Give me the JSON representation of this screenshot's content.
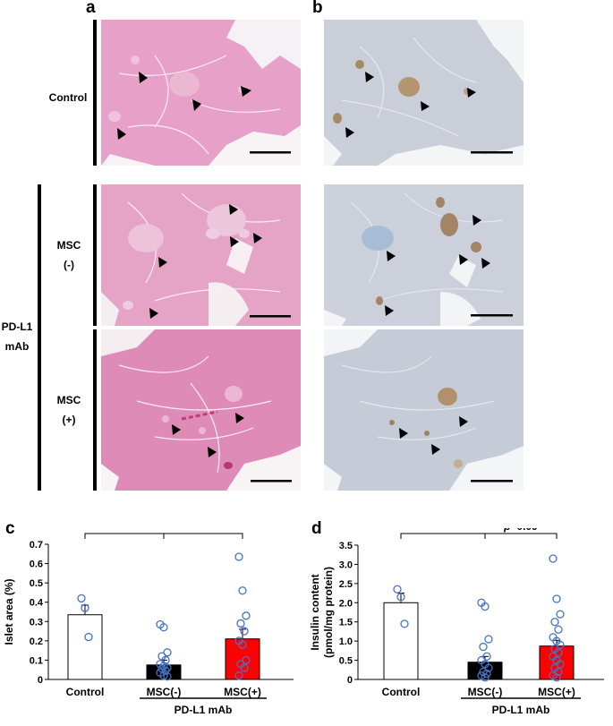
{
  "panels": {
    "a": "a",
    "b": "b",
    "c": "c",
    "d": "d"
  },
  "row_labels": {
    "control": "Control",
    "msc_neg_line1": "MSC",
    "msc_neg_line2": "(-)",
    "msc_pos_line1": "MSC",
    "msc_pos_line2": "(+)",
    "pdl1_line1": "PD-L1",
    "pdl1_line2": "mAb"
  },
  "colors": {
    "he_stain": "#e7a0c7",
    "ihc_stain": "#c9ced8",
    "control_bar": "#ffffff",
    "msc_neg_bar": "#000000",
    "msc_pos_bar": "#ff0000",
    "points": "#4472c4"
  },
  "chart_data": [
    {
      "type": "bar",
      "panel": "c",
      "ylabel": "Islet area (%)",
      "categories": [
        "Control",
        "MSC(-)",
        "MSC(+)"
      ],
      "values": [
        0.335,
        0.075,
        0.21
      ],
      "errors": [
        0.05,
        0.025,
        0.05
      ],
      "ylim": [
        0,
        0.7
      ],
      "yticks": [
        "0",
        "0.1",
        "0.2",
        "0.3",
        "0.4",
        "0.5",
        "0.6",
        "0.7"
      ],
      "group_label": "PD-L1 mAb",
      "significance": [
        {
          "pair": [
            "Control",
            "MSC(-)"
          ],
          "label": "***"
        },
        {
          "pair": [
            "MSC(-)",
            "MSC(+)"
          ],
          "label": "*"
        }
      ],
      "points": [
        [
          0.42,
          0.37,
          0.22
        ],
        [
          0.285,
          0.27,
          0.14,
          0.12,
          0.1,
          0.08,
          0.07,
          0.06,
          0.055,
          0.045,
          0.035,
          0.02,
          0.015
        ],
        [
          0.635,
          0.46,
          0.33,
          0.29,
          0.25,
          0.2,
          0.18,
          0.1,
          0.08,
          0.06,
          0.02
        ]
      ]
    },
    {
      "type": "bar",
      "panel": "d",
      "ylabel_line1": "Insulin content",
      "ylabel_line2": "(pmol/mg protein)",
      "categories": [
        "Control",
        "MSC(-)",
        "MSC(+)"
      ],
      "values": [
        2.0,
        0.45,
        0.87
      ],
      "errors": [
        0.25,
        0.15,
        0.15
      ],
      "ylim": [
        0,
        3.5
      ],
      "yticks": [
        "0",
        "0.5",
        "1.0",
        "1.5",
        "2.0",
        "2.5",
        "3.0",
        "3.5"
      ],
      "group_label": "PD-L1  mAb",
      "significance": [
        {
          "pair": [
            "Control",
            "MSC(-)"
          ],
          "label": "***"
        },
        {
          "pair": [
            "MSC(-)",
            "MSC(+)"
          ],
          "label_italic": "p",
          "label": "=0.09"
        }
      ],
      "points": [
        [
          2.35,
          2.15,
          1.45
        ],
        [
          2.0,
          1.9,
          1.05,
          0.85,
          0.6,
          0.5,
          0.4,
          0.3,
          0.2,
          0.15,
          0.1,
          0.05
        ],
        [
          3.15,
          2.1,
          1.7,
          1.5,
          1.3,
          1.1,
          1.0,
          0.9,
          0.8,
          0.7,
          0.6,
          0.5,
          0.4,
          0.3,
          0.2,
          0.1,
          0.05
        ]
      ]
    }
  ]
}
